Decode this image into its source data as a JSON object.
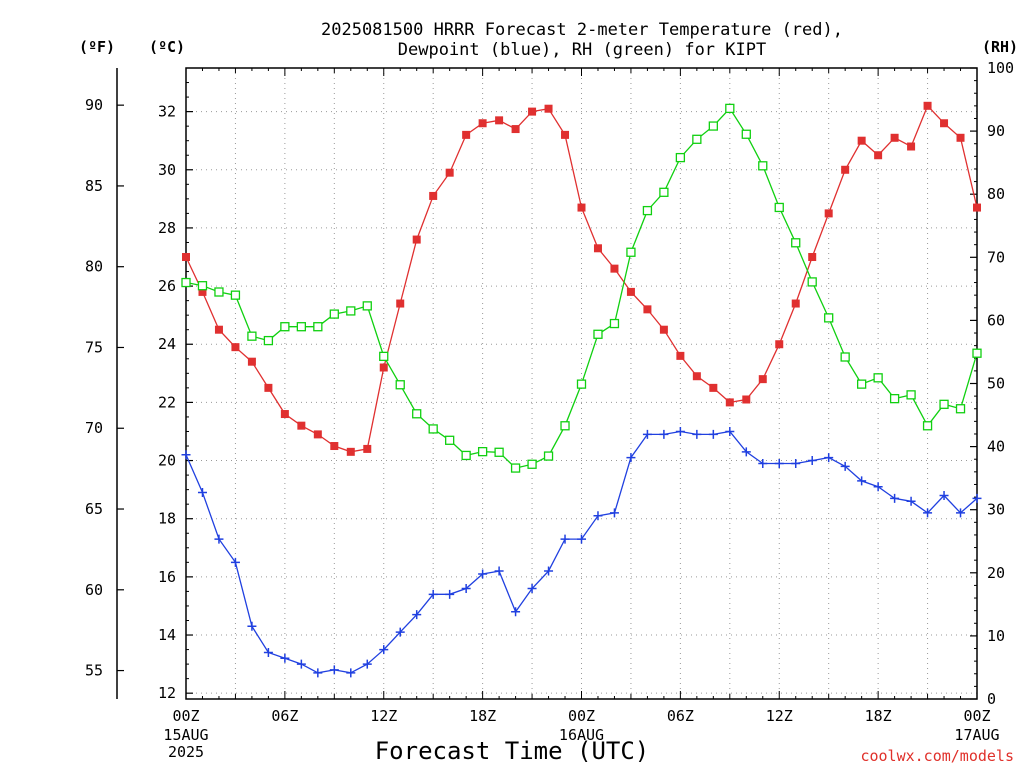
{
  "title_lines": [
    "2025081500 HRRR Forecast 2-meter Temperature (red),",
    "Dewpoint (blue), RH (green) for KIPT"
  ],
  "unit_labels": {
    "fahrenheit": "(ºF)",
    "celsius": "(ºC)",
    "rh": "(RH)"
  },
  "xlabel": "Forecast Time (UTC)",
  "credit": "coolwx.com/models",
  "colors": {
    "temperature": "#e03030",
    "dewpoint": "#2040e0",
    "rh": "#10d010",
    "grid": "#9a9a9a"
  },
  "chart_data": {
    "type": "line",
    "x": [
      0,
      1,
      2,
      3,
      4,
      5,
      6,
      7,
      8,
      9,
      10,
      11,
      12,
      13,
      14,
      15,
      16,
      17,
      18,
      19,
      20,
      21,
      22,
      23,
      24,
      25,
      26,
      27,
      28,
      29,
      30,
      31,
      32,
      33,
      34,
      35,
      36,
      37,
      38,
      39,
      40,
      41,
      42,
      43,
      44,
      45,
      46,
      47,
      48
    ],
    "x_unit": "forecast hours from 2025-08-15 00Z",
    "xlim": [
      0,
      48
    ],
    "x_ticks": [
      {
        "x": 0,
        "label": "00Z",
        "sub": [
          "15AUG",
          "2025"
        ]
      },
      {
        "x": 6,
        "label": "06Z",
        "sub": []
      },
      {
        "x": 12,
        "label": "12Z",
        "sub": []
      },
      {
        "x": 18,
        "label": "18Z",
        "sub": []
      },
      {
        "x": 24,
        "label": "00Z",
        "sub": [
          "16AUG"
        ]
      },
      {
        "x": 30,
        "label": "06Z",
        "sub": []
      },
      {
        "x": 36,
        "label": "12Z",
        "sub": []
      },
      {
        "x": 42,
        "label": "18Z",
        "sub": []
      },
      {
        "x": 48,
        "label": "00Z",
        "sub": [
          "17AUG"
        ]
      }
    ],
    "y_celsius": {
      "ylim": [
        11.8,
        33.5
      ],
      "ticks": [
        12,
        14,
        16,
        18,
        20,
        22,
        24,
        26,
        28,
        30,
        32
      ]
    },
    "y_fahrenheit": {
      "ticks": [
        55,
        60,
        65,
        70,
        75,
        80,
        85,
        90
      ]
    },
    "y_rh": {
      "ylim": [
        0,
        100
      ],
      "ticks": [
        0,
        10,
        20,
        30,
        40,
        50,
        60,
        70,
        80,
        90,
        100
      ]
    },
    "grid": true,
    "series": [
      {
        "name": "Temperature",
        "axis": "celsius",
        "marker": "filled-square",
        "values": [
          27.0,
          25.8,
          24.5,
          23.9,
          23.4,
          22.5,
          21.6,
          21.2,
          20.9,
          20.5,
          20.3,
          20.4,
          23.2,
          25.4,
          27.6,
          29.1,
          29.9,
          31.2,
          31.6,
          31.7,
          31.4,
          32.0,
          32.1,
          31.2,
          28.7,
          27.3,
          26.6,
          25.8,
          25.2,
          24.5,
          23.6,
          22.9,
          22.5,
          22.0,
          22.1,
          22.8,
          24.0,
          25.4,
          27.0,
          28.5,
          30.0,
          31.0,
          30.5,
          31.1,
          30.8,
          32.2,
          31.6,
          31.1,
          28.7
        ]
      },
      {
        "name": "Dewpoint",
        "axis": "celsius",
        "marker": "plus",
        "values": [
          20.2,
          18.9,
          17.3,
          16.5,
          14.3,
          13.4,
          13.2,
          13.0,
          12.7,
          12.8,
          12.7,
          13.0,
          13.5,
          14.1,
          14.7,
          15.4,
          15.4,
          15.6,
          16.1,
          16.2,
          14.8,
          15.6,
          16.2,
          17.3,
          17.3,
          18.1,
          18.2,
          20.1,
          20.9,
          20.9,
          21.0,
          20.9,
          20.9,
          21.0,
          20.3,
          19.9,
          19.9,
          19.9,
          20.0,
          20.1,
          19.8,
          19.3,
          19.1,
          18.7,
          18.6,
          18.2,
          18.8,
          18.2,
          18.7
        ]
      },
      {
        "name": "RH",
        "axis": "rh",
        "marker": "open-square",
        "values": [
          66.0,
          65.5,
          64.5,
          64.0,
          57.5,
          56.8,
          59.0,
          59.0,
          59.0,
          61.0,
          61.5,
          62.3,
          54.3,
          49.8,
          45.2,
          42.8,
          41.0,
          38.6,
          39.2,
          39.1,
          36.6,
          37.2,
          38.5,
          43.3,
          49.9,
          57.8,
          59.5,
          70.8,
          77.4,
          80.3,
          85.8,
          88.7,
          90.8,
          93.6,
          89.5,
          84.5,
          77.9,
          72.3,
          66.1,
          60.4,
          54.2,
          49.9,
          50.9,
          47.6,
          48.2,
          43.3,
          46.7,
          46.0,
          54.8
        ]
      }
    ]
  }
}
